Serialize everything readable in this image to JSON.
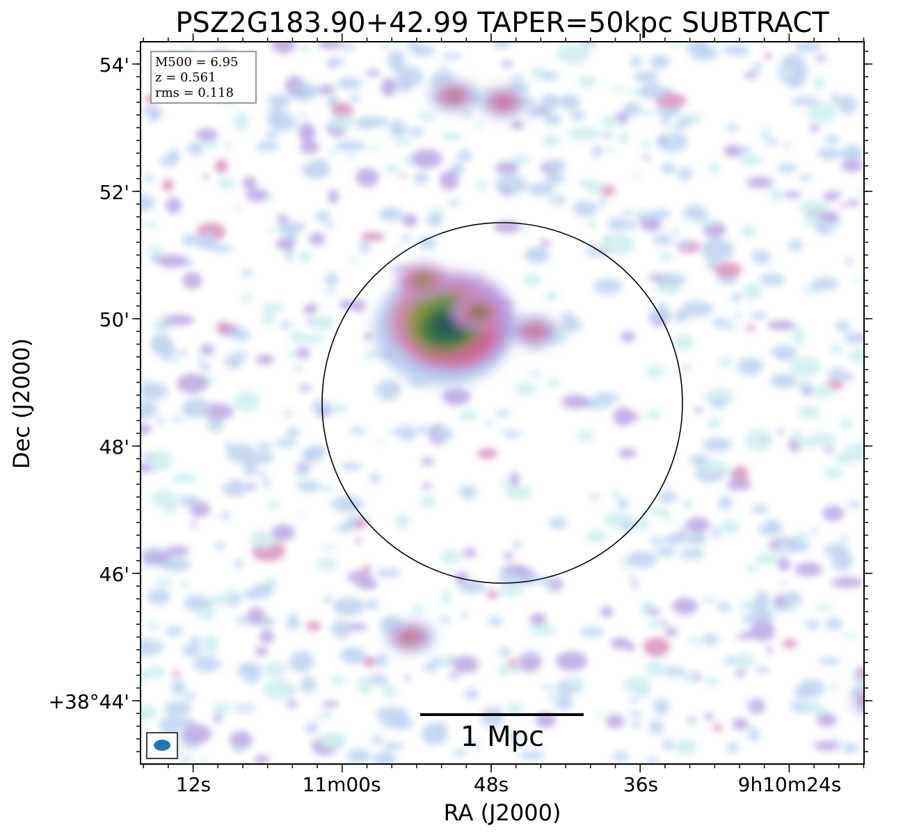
{
  "chart_data": {
    "type": "heatmap",
    "title": "PSZ2G183.90+42.99 TAPER=50kpc SUBTRACT",
    "xlabel": "RA (J2000)",
    "ylabel": "Dec (J2000)",
    "x_ticks": [
      "12s",
      "11m00s",
      "48s",
      "36s",
      "9h10m24s"
    ],
    "y_ticks": [
      "54'",
      "52'",
      "50'",
      "48'",
      "46'",
      "+38°44'"
    ],
    "info_lines": [
      "M500 = 6.95",
      "z = 0.561",
      "rms = 0.118"
    ],
    "scalebar_label": "1 Mpc",
    "colormap": [
      "#ffffff",
      "#c8ecec",
      "#b6cdf0",
      "#b39be0",
      "#d583b6",
      "#cf6390",
      "#8a9a3c",
      "#5d8a2e",
      "#2f6e4a",
      "#1f4f5a"
    ],
    "circle_color": "#000000",
    "beam_color": "#1f77b4",
    "emission_sources": [
      {
        "ra_s": 51.5,
        "dec_min": 49.9,
        "peak": 1.0,
        "extent": "large",
        "note": "main cluster emission (green core)"
      },
      {
        "ra_s": 49.0,
        "dec_min": 50.1,
        "peak": 0.75
      },
      {
        "ra_s": 44.5,
        "dec_min": 49.8,
        "peak": 0.55
      },
      {
        "ra_s": 53.5,
        "dec_min": 50.6,
        "peak": 0.65
      },
      {
        "ra_s": 51.0,
        "dec_min": 53.5,
        "peak": 0.5
      },
      {
        "ra_s": 47.0,
        "dec_min": 53.4,
        "peak": 0.45
      },
      {
        "ra_s": 54.5,
        "dec_min": 45.0,
        "peak": 0.5
      },
      {
        "ra_s": 3.3,
        "dec_min": 46.7,
        "peak": 0.45
      },
      {
        "ra_s": 17.0,
        "dec_min": 44.0,
        "peak": 0.45
      }
    ]
  }
}
